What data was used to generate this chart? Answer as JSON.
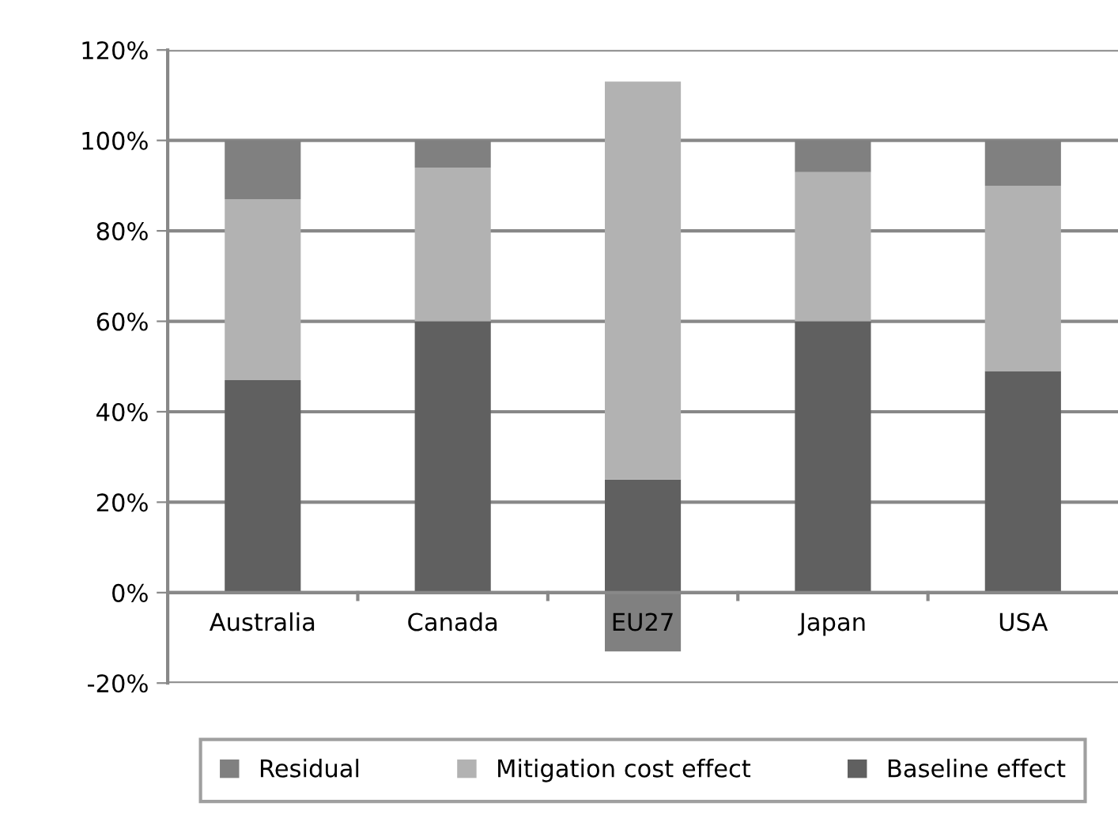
{
  "chart_data": {
    "type": "bar",
    "stacked": true,
    "categories": [
      "Australia",
      "Canada",
      "EU27",
      "Japan",
      "USA"
    ],
    "series": [
      {
        "name": "Baseline effect",
        "color": "#606060",
        "values": [
          47,
          60,
          25,
          60,
          49
        ]
      },
      {
        "name": "Mitigation cost effect",
        "color": "#b2b2b2",
        "values": [
          40,
          34,
          88,
          33,
          41
        ]
      },
      {
        "name": "Residual",
        "color": "#808080",
        "values": [
          13,
          6,
          -13,
          7,
          10
        ]
      }
    ],
    "ylim": [
      -20,
      120
    ],
    "yticks": [
      {
        "value": -20,
        "label": "-20%"
      },
      {
        "value": 0,
        "label": "0%"
      },
      {
        "value": 20,
        "label": "20%"
      },
      {
        "value": 40,
        "label": "40%"
      },
      {
        "value": 60,
        "label": "60%"
      },
      {
        "value": 80,
        "label": "80%"
      },
      {
        "value": 100,
        "label": "100%"
      },
      {
        "value": 120,
        "label": "120%"
      }
    ],
    "grid": "y",
    "legend": "bottom"
  }
}
